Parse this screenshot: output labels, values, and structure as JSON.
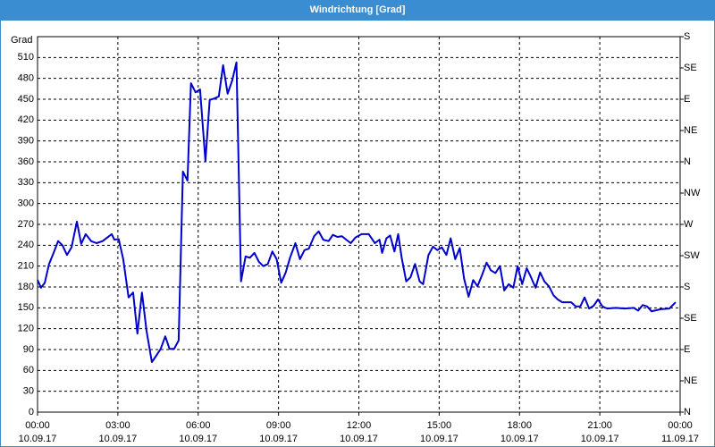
{
  "chart_data": {
    "type": "line",
    "title": "Windrichtung [Grad]",
    "y_label": "Grad",
    "xlim": [
      0,
      24
    ],
    "ylim": [
      0,
      540
    ],
    "y2lim": [
      0,
      540
    ],
    "xticks": [
      {
        "value": 0,
        "label": "00:00",
        "date": "10.09.17"
      },
      {
        "value": 3,
        "label": "03:00",
        "date": "10.09.17"
      },
      {
        "value": 6,
        "label": "06:00",
        "date": "10.09.17"
      },
      {
        "value": 9,
        "label": "09:00",
        "date": "10.09.17"
      },
      {
        "value": 12,
        "label": "12:00",
        "date": "10.09.17"
      },
      {
        "value": 15,
        "label": "15:00",
        "date": "10.09.17"
      },
      {
        "value": 18,
        "label": "18:00",
        "date": "10.09.17"
      },
      {
        "value": 21,
        "label": "21:00",
        "date": "10.09.17"
      },
      {
        "value": 24,
        "label": "00:00",
        "date": "11.09.17"
      }
    ],
    "yticks": [
      0,
      30,
      60,
      90,
      120,
      150,
      180,
      210,
      240,
      270,
      300,
      330,
      360,
      390,
      420,
      450,
      480,
      510
    ],
    "y2ticks": [
      {
        "value": 0,
        "label": "N"
      },
      {
        "value": 45,
        "label": "NE"
      },
      {
        "value": 90,
        "label": "E"
      },
      {
        "value": 135,
        "label": "SE"
      },
      {
        "value": 180,
        "label": "S"
      },
      {
        "value": 225,
        "label": "SW"
      },
      {
        "value": 270,
        "label": "W"
      },
      {
        "value": 315,
        "label": "NW"
      },
      {
        "value": 360,
        "label": "N"
      },
      {
        "value": 405,
        "label": "NE"
      },
      {
        "value": 450,
        "label": "E"
      },
      {
        "value": 495,
        "label": "SE"
      },
      {
        "value": 540,
        "label": "S"
      }
    ],
    "grid": true,
    "series": [
      {
        "color": "#0000cc",
        "x": [
          0,
          0.13,
          0.27,
          0.43,
          0.6,
          0.77,
          0.93,
          1.1,
          1.27,
          1.47,
          1.63,
          1.8,
          2,
          2.2,
          2.43,
          2.6,
          2.77,
          2.87,
          3.03,
          3.2,
          3.4,
          3.57,
          3.73,
          3.9,
          4.07,
          4.27,
          4.43,
          4.6,
          4.77,
          4.93,
          5.1,
          5.27,
          5.43,
          5.6,
          5.73,
          5.9,
          6.07,
          6.27,
          6.43,
          6.6,
          6.77,
          6.93,
          7.1,
          7.27,
          7.43,
          7.6,
          7.77,
          7.93,
          8.1,
          8.27,
          8.43,
          8.6,
          8.77,
          8.93,
          9.1,
          9.27,
          9.43,
          9.63,
          9.8,
          9.97,
          10.13,
          10.33,
          10.5,
          10.67,
          10.87,
          11.03,
          11.2,
          11.37,
          11.53,
          11.7,
          11.87,
          12.1,
          12.37,
          12.6,
          12.77,
          12.87,
          13.03,
          13.17,
          13.33,
          13.47,
          13.6,
          13.77,
          13.93,
          14.1,
          14.27,
          14.4,
          14.6,
          14.77,
          14.93,
          15.1,
          15.27,
          15.43,
          15.6,
          15.77,
          15.93,
          16.1,
          16.27,
          16.43,
          16.6,
          16.77,
          16.93,
          17.1,
          17.27,
          17.43,
          17.6,
          17.77,
          17.93,
          18.1,
          18.27,
          18.43,
          18.6,
          18.77,
          18.93,
          19.1,
          19.27,
          19.43,
          19.6,
          19.93,
          20.1,
          20.27,
          20.43,
          20.6,
          20.77,
          20.93,
          21.1,
          21.27,
          21.6,
          21.93,
          22.27,
          22.43,
          22.6,
          22.77,
          22.93,
          23.27,
          23.6,
          23.83
        ],
        "values": [
          190,
          179,
          186,
          213,
          229,
          246,
          240,
          226,
          237,
          274,
          242,
          256,
          246,
          243,
          246,
          251,
          256,
          248,
          249,
          220,
          165,
          172,
          113,
          172,
          117,
          72,
          81,
          91,
          109,
          91,
          91,
          103,
          346,
          333,
          473,
          460,
          464,
          361,
          449,
          451,
          454,
          499,
          458,
          477,
          503,
          188,
          224,
          222,
          229,
          216,
          210,
          213,
          231,
          220,
          186,
          201,
          222,
          243,
          220,
          233,
          235,
          253,
          260,
          248,
          246,
          255,
          252,
          253,
          248,
          243,
          251,
          256,
          256,
          243,
          248,
          229,
          250,
          254,
          231,
          256,
          222,
          188,
          194,
          213,
          188,
          184,
          226,
          238,
          233,
          237,
          226,
          250,
          220,
          236,
          192,
          166,
          190,
          181,
          197,
          215,
          204,
          200,
          210,
          175,
          184,
          179,
          210,
          184,
          207,
          194,
          179,
          201,
          188,
          181,
          168,
          162,
          158,
          158,
          152,
          152,
          165,
          149,
          153,
          162,
          152,
          149,
          150,
          149,
          150,
          146,
          154,
          152,
          145,
          148,
          149,
          158
        ]
      }
    ]
  }
}
